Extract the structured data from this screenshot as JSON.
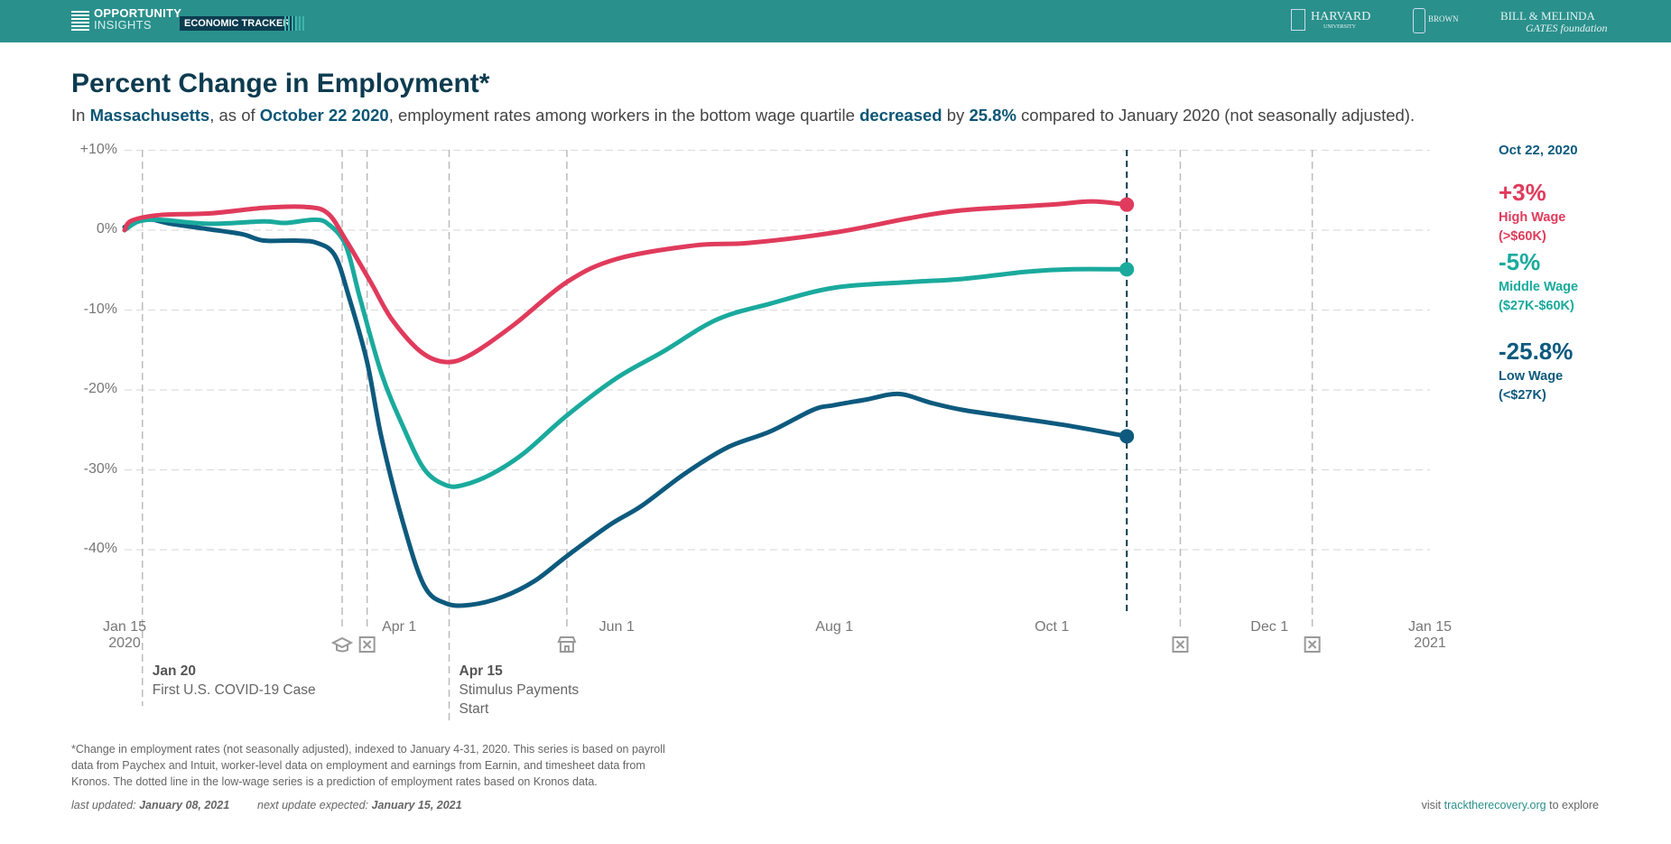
{
  "header": {
    "logo_line1": "OPPORTUNITY",
    "logo_line2": "INSIGHTS",
    "tracker_label": "ECONOMIC TRACKER",
    "partner1": "HARVARD",
    "partner1_sub": "UNIVERSITY",
    "partner2": "BROWN",
    "partner3_line1": "BILL & MELINDA",
    "partner3_line2": "GATES foundation"
  },
  "title": "Percent Change in Employment*",
  "subtitle": {
    "p1": "In ",
    "state": "Massachusetts",
    "p2": ", as of ",
    "date": "October 22 2020",
    "p3": ", employment rates among workers in the bottom wage quartile ",
    "direction": "decreased",
    "p4": " by ",
    "amount": "25.8%",
    "p5": " compared to January 2020 (not seasonally adjusted)."
  },
  "legend": {
    "date": "Oct 22, 2020",
    "items": [
      {
        "value": "+3%",
        "label1": "High Wage",
        "label2": "(>$60K)",
        "color": "#e03b5c"
      },
      {
        "value": "-5%",
        "label1": "Middle Wage",
        "label2": "($27K-$60K)",
        "color": "#1aaa9d"
      },
      {
        "value": "-25.8%",
        "label1": "Low Wage",
        "label2": "(<$27K)",
        "color": "#0d5a7e"
      }
    ]
  },
  "annotations": [
    {
      "date": "2020-01-20",
      "title": "Jan 20",
      "text1": "First U.S. COVID-19 Case",
      "text2": ""
    },
    {
      "date": "2020-04-15",
      "title": "Apr 15",
      "text1": "Stimulus Payments",
      "text2": "Start"
    }
  ],
  "event_markers": [
    {
      "date": "2020-03-16",
      "icon": "graduation-cap-icon"
    },
    {
      "date": "2020-03-23",
      "icon": "close-box-icon"
    },
    {
      "date": "2020-05-18",
      "icon": "store-icon"
    },
    {
      "date": "2020-11-06",
      "icon": "close-box-icon"
    },
    {
      "date": "2020-12-13",
      "icon": "close-box-icon"
    }
  ],
  "footnote": {
    "line1": "*Change in employment rates (not seasonally adjusted), indexed to January 4-31, 2020. This series is based on payroll",
    "line2": "data from Paychex and Intuit, worker-level data on employment and earnings from Earnin, and timesheet data from",
    "line3": "Kronos. The dotted line in the low-wage series is a prediction of employment rates based on Kronos data.",
    "updated_label": "last updated:",
    "updated": "January 08, 2021",
    "next_label": "next update expected:",
    "next": "January 15, 2021",
    "visit_pre": "visit ",
    "visit_link": "tracktherecovery.org",
    "visit_post": " to explore"
  },
  "chart_data": {
    "type": "line",
    "title": "Percent Change in Employment*",
    "xlim": [
      "2020-01-15",
      "2021-01-15"
    ],
    "ylim": [
      -48,
      10
    ],
    "grid": true,
    "yticks": [
      10,
      0,
      -10,
      -20,
      -30,
      -40
    ],
    "ytick_labels": [
      "+10%",
      "0%",
      "-10%",
      "-20%",
      "-30%",
      "-40%"
    ],
    "xticks": [
      {
        "date": "2020-01-15",
        "label": "Jan 15",
        "label2": "2020"
      },
      {
        "date": "2020-04-01",
        "label": "Apr 1",
        "label2": ""
      },
      {
        "date": "2020-06-01",
        "label": "Jun 1",
        "label2": ""
      },
      {
        "date": "2020-08-01",
        "label": "Aug 1",
        "label2": ""
      },
      {
        "date": "2020-10-01",
        "label": "Oct 1",
        "label2": ""
      },
      {
        "date": "2020-12-01",
        "label": "Dec 1",
        "label2": ""
      },
      {
        "date": "2021-01-15",
        "label": "Jan 15",
        "label2": "2021"
      }
    ],
    "current_date": "2020-10-22",
    "series": [
      {
        "name": "High Wage",
        "color": "#e03b5c",
        "points": [
          [
            "2020-01-15",
            0
          ],
          [
            "2020-01-17",
            1.2
          ],
          [
            "2020-01-25",
            1.9
          ],
          [
            "2020-02-08",
            2.1
          ],
          [
            "2020-02-23",
            2.8
          ],
          [
            "2020-03-06",
            2.9
          ],
          [
            "2020-03-12",
            2.1
          ],
          [
            "2020-03-17",
            -1.2
          ],
          [
            "2020-03-24",
            -6.5
          ],
          [
            "2020-03-30",
            -11.2
          ],
          [
            "2020-04-07",
            -15.2
          ],
          [
            "2020-04-14",
            -16.5
          ],
          [
            "2020-04-21",
            -15.6
          ],
          [
            "2020-05-03",
            -11.9
          ],
          [
            "2020-05-18",
            -6.5
          ],
          [
            "2020-06-01",
            -3.6
          ],
          [
            "2020-06-23",
            -1.9
          ],
          [
            "2020-07-08",
            -1.6
          ],
          [
            "2020-08-01",
            -0.3
          ],
          [
            "2020-08-22",
            1.5
          ],
          [
            "2020-09-06",
            2.5
          ],
          [
            "2020-10-01",
            3.2
          ],
          [
            "2020-10-12",
            3.6
          ],
          [
            "2020-10-22",
            3.2
          ]
        ]
      },
      {
        "name": "Middle Wage",
        "color": "#1aaa9d",
        "points": [
          [
            "2020-01-15",
            0
          ],
          [
            "2020-01-19",
            1.1
          ],
          [
            "2020-01-25",
            1.3
          ],
          [
            "2020-02-08",
            0.8
          ],
          [
            "2020-02-23",
            1.1
          ],
          [
            "2020-02-29",
            0.9
          ],
          [
            "2020-03-08",
            1.3
          ],
          [
            "2020-03-12",
            0.8
          ],
          [
            "2020-03-17",
            -1.9
          ],
          [
            "2020-03-21",
            -8.5
          ],
          [
            "2020-03-27",
            -17.9
          ],
          [
            "2020-04-02",
            -24.5
          ],
          [
            "2020-04-08",
            -29.9
          ],
          [
            "2020-04-14",
            -31.9
          ],
          [
            "2020-04-19",
            -31.9
          ],
          [
            "2020-04-27",
            -30.5
          ],
          [
            "2020-05-06",
            -27.9
          ],
          [
            "2020-05-18",
            -23.2
          ],
          [
            "2020-06-01",
            -18.5
          ],
          [
            "2020-06-14",
            -15.2
          ],
          [
            "2020-06-29",
            -11.2
          ],
          [
            "2020-07-14",
            -9.2
          ],
          [
            "2020-08-01",
            -7.2
          ],
          [
            "2020-08-22",
            -6.5
          ],
          [
            "2020-09-06",
            -6.1
          ],
          [
            "2020-09-24",
            -5.2
          ],
          [
            "2020-10-06",
            -4.9
          ],
          [
            "2020-10-22",
            -4.9
          ]
        ]
      },
      {
        "name": "Low Wage",
        "color": "#0d5a7e",
        "points": [
          [
            "2020-01-15",
            0.4
          ],
          [
            "2020-01-20",
            1.5
          ],
          [
            "2020-01-28",
            0.8
          ],
          [
            "2020-02-08",
            0.1
          ],
          [
            "2020-02-17",
            -0.5
          ],
          [
            "2020-02-23",
            -1.3
          ],
          [
            "2020-03-03",
            -1.3
          ],
          [
            "2020-03-09",
            -1.6
          ],
          [
            "2020-03-14",
            -3.2
          ],
          [
            "2020-03-18",
            -8.5
          ],
          [
            "2020-03-23",
            -16.5
          ],
          [
            "2020-03-27",
            -25.9
          ],
          [
            "2020-04-02",
            -36.5
          ],
          [
            "2020-04-08",
            -44.5
          ],
          [
            "2020-04-14",
            -46.7
          ],
          [
            "2020-04-21",
            -46.9
          ],
          [
            "2020-04-30",
            -45.9
          ],
          [
            "2020-05-09",
            -43.9
          ],
          [
            "2020-05-18",
            -40.8
          ],
          [
            "2020-05-30",
            -36.9
          ],
          [
            "2020-06-08",
            -34.5
          ],
          [
            "2020-06-20",
            -30.5
          ],
          [
            "2020-07-02",
            -27.2
          ],
          [
            "2020-07-14",
            -25.2
          ],
          [
            "2020-07-26",
            -22.5
          ],
          [
            "2020-08-01",
            -21.9
          ],
          [
            "2020-08-10",
            -21.2
          ],
          [
            "2020-08-19",
            -20.5
          ],
          [
            "2020-08-28",
            -21.6
          ],
          [
            "2020-09-06",
            -22.5
          ],
          [
            "2020-09-21",
            -23.5
          ],
          [
            "2020-10-06",
            -24.5
          ],
          [
            "2020-10-22",
            -25.8
          ]
        ]
      }
    ]
  }
}
